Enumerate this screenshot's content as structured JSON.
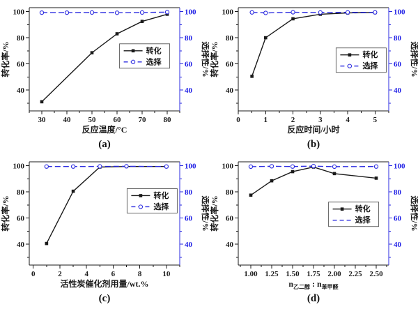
{
  "figure": {
    "background": "#ffffff",
    "colors": {
      "conversion": "#1a1a1a",
      "selectivity": "#2b2be0",
      "axis_black": "#1a1a1a",
      "tick_text_left": "#1a1a1a",
      "tick_text_right": "#2222e6"
    },
    "legend": {
      "conversion_label": "转化",
      "selectivity_label": "选择"
    }
  },
  "chart_data": [
    {
      "id": "a",
      "type": "line",
      "caption": "(a)",
      "xlabel": "反应温度/°C",
      "ylabel_left": "转化率/%",
      "ylabel_right": "选择性/%",
      "xlim": [
        25,
        85
      ],
      "ylim": [
        24,
        103
      ],
      "xticks": {
        "values": [
          30,
          40,
          50,
          60,
          70,
          80
        ],
        "labels": [
          "30",
          "40",
          "50",
          "60",
          "70",
          "80"
        ]
      },
      "yticks": {
        "values": [
          40,
          60,
          80,
          100
        ],
        "labels": [
          "40",
          "60",
          "80",
          "100"
        ]
      },
      "minor_x_step": 5,
      "minor_y": [
        30,
        50,
        70,
        90
      ],
      "series": [
        {
          "name": "转化",
          "axis": "left",
          "color": "#1a1a1a",
          "line": "solid",
          "marker": "square",
          "x": [
            30,
            50,
            60,
            70,
            80
          ],
          "y": [
            31,
            68.5,
            83,
            92.5,
            98
          ]
        },
        {
          "name": "选择",
          "axis": "right",
          "color": "#2b2be0",
          "line": "dashed",
          "marker": "circle-open",
          "legend_marker": true,
          "x": [
            30,
            40,
            50,
            60,
            70,
            80
          ],
          "y": [
            99.2,
            99.2,
            99.3,
            99.1,
            99.3,
            99.6
          ]
        }
      ]
    },
    {
      "id": "b",
      "type": "line",
      "caption": "(b)",
      "xlabel": "反应时间/小时",
      "ylabel_left": "转化率/%",
      "ylabel_right": "选择性/%",
      "xlim": [
        0,
        5.5
      ],
      "ylim": [
        24,
        103
      ],
      "xticks": {
        "values": [
          0,
          1,
          2,
          3,
          4,
          5
        ],
        "labels": [
          "0",
          "1",
          "2",
          "3",
          "4",
          "5"
        ]
      },
      "yticks": {
        "values": [
          40,
          60,
          80,
          100
        ],
        "labels": [
          "40",
          "60",
          "80",
          "100"
        ]
      },
      "minor_x_step": 0.5,
      "minor_y": [
        30,
        50,
        70,
        90
      ],
      "series": [
        {
          "name": "转化",
          "axis": "left",
          "color": "#1a1a1a",
          "line": "solid",
          "marker": "square",
          "x": [
            0.5,
            1,
            2,
            3,
            4,
            5
          ],
          "y": [
            50.5,
            80,
            94.5,
            98,
            99,
            99.3
          ]
        },
        {
          "name": "选择",
          "axis": "right",
          "color": "#2b2be0",
          "line": "dashed",
          "marker": "circle-open",
          "legend_marker": true,
          "x": [
            0.5,
            1,
            2,
            3,
            4,
            5
          ],
          "y": [
            99.4,
            99.0,
            99.5,
            99.3,
            99.4,
            99.4
          ]
        }
      ]
    },
    {
      "id": "c",
      "type": "line",
      "caption": "(c)",
      "xlabel": "活性炭催化剂用量/wt.%",
      "ylabel_left": "转化率/%",
      "ylabel_right": "选择性/%",
      "xlim": [
        -0.3,
        11
      ],
      "ylim": [
        24,
        103
      ],
      "xticks": {
        "values": [
          0,
          2,
          4,
          6,
          8,
          10
        ],
        "labels": [
          "0",
          "2",
          "4",
          "6",
          "8",
          "10"
        ]
      },
      "yticks": {
        "values": [
          40,
          60,
          80,
          100
        ],
        "labels": [
          "40",
          "60",
          "80",
          "100"
        ]
      },
      "minor_x_step": 1,
      "minor_y": [
        30,
        50,
        70,
        90
      ],
      "series": [
        {
          "name": "转化",
          "axis": "left",
          "color": "#1a1a1a",
          "line": "solid",
          "marker": "square",
          "x": [
            1,
            3,
            5,
            7,
            10
          ],
          "y": [
            40.5,
            80.5,
            99,
            99.4,
            99.4
          ]
        },
        {
          "name": "选择",
          "axis": "right",
          "color": "#2b2be0",
          "line": "dashed",
          "marker": "circle-open",
          "legend_marker": true,
          "x": [
            1,
            3,
            5,
            7,
            10
          ],
          "y": [
            99.4,
            99.4,
            99.5,
            99.6,
            99.4
          ]
        }
      ]
    },
    {
      "id": "d",
      "type": "line",
      "caption": "(d)",
      "xlabel": "n乙二醇 : n苯甲醛",
      "xlabel_rich": [
        {
          "t": "n",
          "sub": false
        },
        {
          "t": "乙二醇",
          "sub": true
        },
        {
          "t": " : ",
          "sub": false
        },
        {
          "t": "n",
          "sub": false
        },
        {
          "t": "苯甲醛",
          "sub": true
        }
      ],
      "ylabel_left": "转化率/%",
      "ylabel_right": "选择性/%",
      "xlim": [
        0.85,
        2.65
      ],
      "ylim": [
        24,
        103
      ],
      "xticks": {
        "values": [
          1.0,
          1.25,
          1.5,
          1.75,
          2.0,
          2.25,
          2.5
        ],
        "labels": [
          "1.00",
          "1.25",
          "1.50",
          "1.75",
          "2.00",
          "2.25",
          "2.50"
        ]
      },
      "yticks": {
        "values": [
          40,
          60,
          80,
          100
        ],
        "labels": [
          "40",
          "60",
          "80",
          "100"
        ]
      },
      "minor_x_step": 0.125,
      "minor_y": [
        30,
        50,
        70,
        90
      ],
      "series": [
        {
          "name": "转化",
          "axis": "left",
          "color": "#1a1a1a",
          "line": "solid",
          "marker": "square",
          "x": [
            1.0,
            1.25,
            1.5,
            1.75,
            2.0,
            2.5
          ],
          "y": [
            77.5,
            88.5,
            95.5,
            99,
            94,
            90.5
          ]
        },
        {
          "name": "选择",
          "axis": "right",
          "color": "#2b2be0",
          "line": "dashed",
          "marker": "circle-open",
          "legend_marker": false,
          "x": [
            1.0,
            1.25,
            1.5,
            1.75,
            2.0,
            2.5
          ],
          "y": [
            99.3,
            99.6,
            99.4,
            99.7,
            99.3,
            99.4
          ]
        }
      ]
    }
  ]
}
